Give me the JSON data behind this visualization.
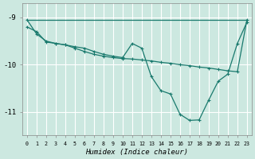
{
  "xlabel": "Humidex (Indice chaleur)",
  "xlim": [
    -0.5,
    23.5
  ],
  "ylim": [
    -11.5,
    -8.7
  ],
  "yticks": [
    -11,
    -10,
    -9
  ],
  "xticks": [
    0,
    1,
    2,
    3,
    4,
    5,
    6,
    7,
    8,
    9,
    10,
    11,
    12,
    13,
    14,
    15,
    16,
    17,
    18,
    19,
    20,
    21,
    22,
    23
  ],
  "bg_color": "#cce8e0",
  "grid_color": "#ffffff",
  "line_color": "#1a7a6e",
  "lines": [
    {
      "x": [
        0,
        23
      ],
      "y": [
        -9.05,
        -9.05
      ]
    },
    {
      "x": [
        0,
        1,
        2,
        3,
        4,
        5,
        6,
        7,
        8,
        9,
        10,
        11,
        12,
        13,
        14,
        15,
        16,
        17,
        18,
        19,
        20,
        21,
        22,
        23
      ],
      "y": [
        -9.05,
        -9.35,
        -9.5,
        -9.55,
        -9.58,
        -9.65,
        -9.72,
        -9.78,
        -9.82,
        -9.85,
        -9.87,
        -9.88,
        -9.9,
        -9.92,
        -9.95,
        -9.97,
        -10.0,
        -10.02,
        -10.05,
        -10.07,
        -10.1,
        -10.13,
        -10.15,
        -9.05
      ]
    },
    {
      "x": [
        0,
        1,
        2,
        3,
        4,
        5,
        6,
        7,
        8,
        9,
        10,
        11,
        12,
        13,
        14,
        15,
        16,
        17,
        18,
        19,
        20,
        21,
        22,
        23
      ],
      "y": [
        -9.2,
        -9.3,
        -9.52,
        -9.55,
        -9.58,
        -9.62,
        -9.65,
        -9.72,
        -9.78,
        -9.82,
        -9.85,
        -9.55,
        -9.65,
        -10.25,
        -10.55,
        -10.62,
        -11.05,
        -11.18,
        -11.17,
        -10.75,
        -10.35,
        -10.2,
        -9.55,
        -9.1
      ]
    }
  ]
}
